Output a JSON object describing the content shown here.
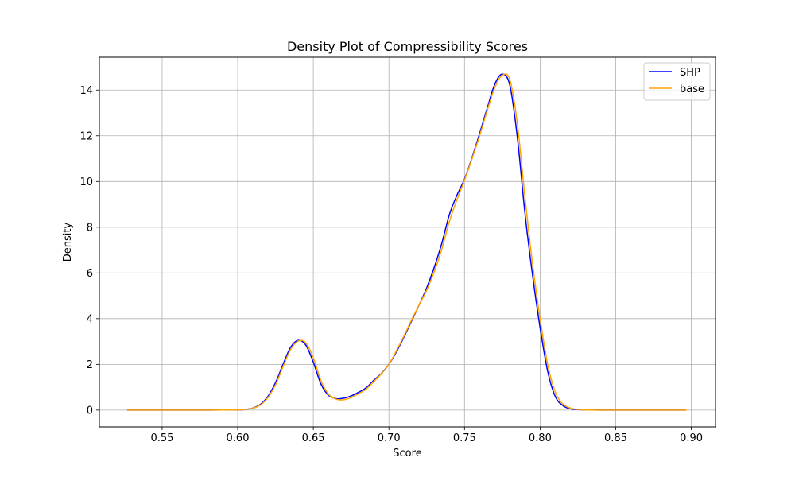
{
  "chart_data": {
    "type": "line",
    "title": "Density Plot of Compressibility Scores",
    "xlabel": "Score",
    "ylabel": "Density",
    "xlim": [
      0.5085,
      0.916
    ],
    "ylim": [
      -0.735,
      15.435
    ],
    "xticks": [
      0.55,
      0.6,
      0.65,
      0.7,
      0.75,
      0.8,
      0.85,
      0.9
    ],
    "xtick_labels": [
      "0.55",
      "0.60",
      "0.65",
      "0.70",
      "0.75",
      "0.80",
      "0.85",
      "0.90"
    ],
    "yticks": [
      0,
      2,
      4,
      6,
      8,
      10,
      12,
      14
    ],
    "ytick_labels": [
      "0",
      "2",
      "4",
      "6",
      "8",
      "10",
      "12",
      "14"
    ],
    "grid": true,
    "legend_position": "top-right",
    "series": [
      {
        "name": "SHP",
        "color": "#0000ff",
        "x": [
          0.527,
          0.55,
          0.58,
          0.6,
          0.605,
          0.61,
          0.615,
          0.62,
          0.625,
          0.63,
          0.635,
          0.64,
          0.645,
          0.65,
          0.655,
          0.66,
          0.665,
          0.67,
          0.675,
          0.68,
          0.685,
          0.69,
          0.695,
          0.7,
          0.705,
          0.71,
          0.715,
          0.72,
          0.725,
          0.73,
          0.735,
          0.74,
          0.745,
          0.75,
          0.755,
          0.76,
          0.765,
          0.77,
          0.775,
          0.78,
          0.785,
          0.79,
          0.795,
          0.8,
          0.805,
          0.81,
          0.815,
          0.82,
          0.825,
          0.83,
          0.84,
          0.85,
          0.87,
          0.896
        ],
        "values": [
          0,
          0,
          0,
          0.01,
          0.03,
          0.09,
          0.25,
          0.6,
          1.2,
          2.0,
          2.75,
          3.05,
          2.85,
          2.1,
          1.15,
          0.65,
          0.5,
          0.52,
          0.62,
          0.78,
          0.98,
          1.3,
          1.6,
          2.0,
          2.55,
          3.2,
          3.9,
          4.6,
          5.35,
          6.25,
          7.3,
          8.55,
          9.4,
          10.1,
          11.05,
          12.1,
          13.2,
          14.25,
          14.7,
          14.2,
          11.9,
          8.6,
          5.9,
          3.6,
          1.7,
          0.6,
          0.2,
          0.06,
          0.02,
          0.01,
          0,
          0,
          0,
          0
        ]
      },
      {
        "name": "base",
        "color": "#ffa500",
        "x": [
          0.527,
          0.55,
          0.58,
          0.6,
          0.605,
          0.61,
          0.615,
          0.62,
          0.625,
          0.63,
          0.635,
          0.64,
          0.645,
          0.65,
          0.655,
          0.66,
          0.665,
          0.67,
          0.675,
          0.68,
          0.685,
          0.69,
          0.695,
          0.7,
          0.705,
          0.71,
          0.715,
          0.72,
          0.725,
          0.73,
          0.735,
          0.74,
          0.745,
          0.75,
          0.755,
          0.76,
          0.765,
          0.77,
          0.775,
          0.78,
          0.785,
          0.79,
          0.795,
          0.8,
          0.805,
          0.81,
          0.815,
          0.82,
          0.825,
          0.83,
          0.84,
          0.85,
          0.87,
          0.897
        ],
        "values": [
          0,
          0,
          0,
          0.01,
          0.03,
          0.08,
          0.22,
          0.55,
          1.1,
          1.9,
          2.65,
          3.02,
          2.95,
          2.3,
          1.3,
          0.7,
          0.48,
          0.45,
          0.55,
          0.72,
          0.92,
          1.25,
          1.58,
          2.0,
          2.6,
          3.25,
          3.95,
          4.6,
          5.25,
          6.05,
          7.05,
          8.25,
          9.2,
          10.05,
          11.0,
          12.0,
          13.1,
          14.1,
          14.65,
          14.45,
          12.5,
          9.3,
          6.4,
          4.0,
          2.0,
          0.8,
          0.27,
          0.09,
          0.03,
          0.01,
          0,
          0,
          0,
          0
        ]
      }
    ]
  }
}
